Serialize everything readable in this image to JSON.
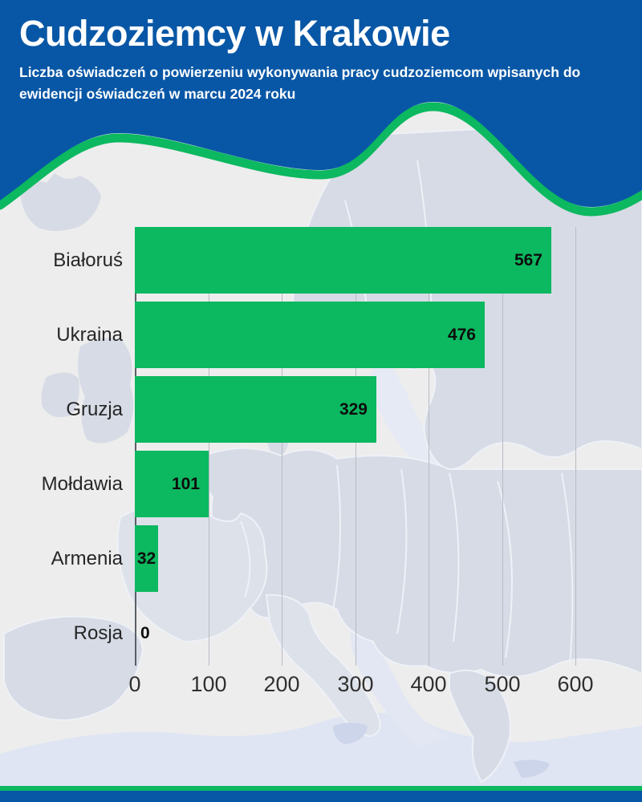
{
  "header": {
    "title": "Cudzoziemcy w Krakowie",
    "subtitle": "Liczba oświadczeń o powierzeniu wykonywania pracy cudzoziemcom wpisanych do ewidencji oświadczeń w marcu 2024 roku"
  },
  "colors": {
    "header_blue": "#0857A6",
    "accent_green": "#0CB860",
    "background": "#EDEDEE",
    "map_land": "#D6DBE6",
    "map_sea_tint": "#DFE5F2",
    "grid_line": "#B7BBC2",
    "axis_line": "#5B6066",
    "label_text": "#262626",
    "value_text": "#0D0D0D"
  },
  "chart_data": {
    "type": "bar",
    "orientation": "horizontal",
    "title": "Cudzoziemcy w Krakowie",
    "subtitle": "Liczba oświadczeń o powierzeniu wykonywania pracy cudzoziemcom wpisanych do ewidencji oświadczeń w marcu 2024 roku",
    "categories": [
      "Białoruś",
      "Ukraina",
      "Gruzja",
      "Mołdawia",
      "Armenia",
      "Rosja"
    ],
    "values": [
      567,
      476,
      329,
      101,
      32,
      0
    ],
    "xlim": [
      0,
      600
    ],
    "x_ticks": [
      "0",
      "100",
      "200",
      "300",
      "400",
      "500",
      "600"
    ],
    "grid": true,
    "bar_color": "#0CB860",
    "value_label_position": "inside-end"
  }
}
